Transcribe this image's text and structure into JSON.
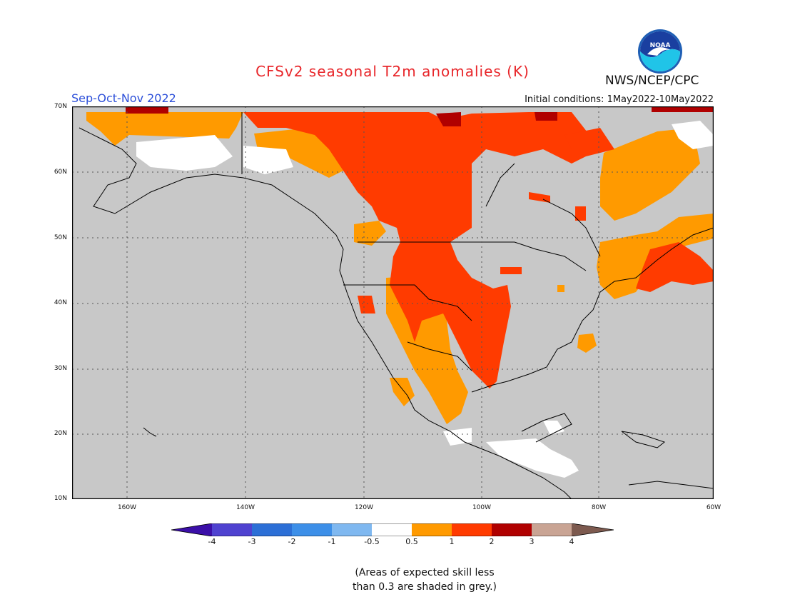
{
  "title": "CFSv2 seasonal T2m anomalies (K)",
  "season": "Sep-Oct-Nov 2022",
  "initial_conditions": "Initial conditions:  1May2022-10May2022",
  "agency": "NWS/NCEP/CPC",
  "logo_text": "NOAA",
  "lat_labels": [
    "70N",
    "60N",
    "50N",
    "40N",
    "30N",
    "20N",
    "10N"
  ],
  "lon_labels": [
    "160W",
    "140W",
    "120W",
    "100W",
    "80W",
    "60W"
  ],
  "colorbar": {
    "labels": [
      "-4",
      "-3",
      "-2",
      "-1",
      "-0.5",
      "0.5",
      "1",
      "2",
      "3",
      "4"
    ],
    "colors": [
      "#3b0fa8",
      "#4f42d0",
      "#2c6fd6",
      "#3d8fe8",
      "#7fb8f0",
      "#ffffff",
      "#ff9a00",
      "#ff3b00",
      "#b00000",
      "#c9a494",
      "#7d5a4f"
    ]
  },
  "note_line1": "(Areas of expected skill less",
  "note_line2": "than 0.3 are shaded in grey.)",
  "map_colors": {
    "no_skill": "#c8c8c8",
    "near_normal": "#ffffff",
    "anom_0_5_1": "#ff9a00",
    "anom_1_2": "#ff3b00",
    "anom_2_3": "#b00000"
  }
}
